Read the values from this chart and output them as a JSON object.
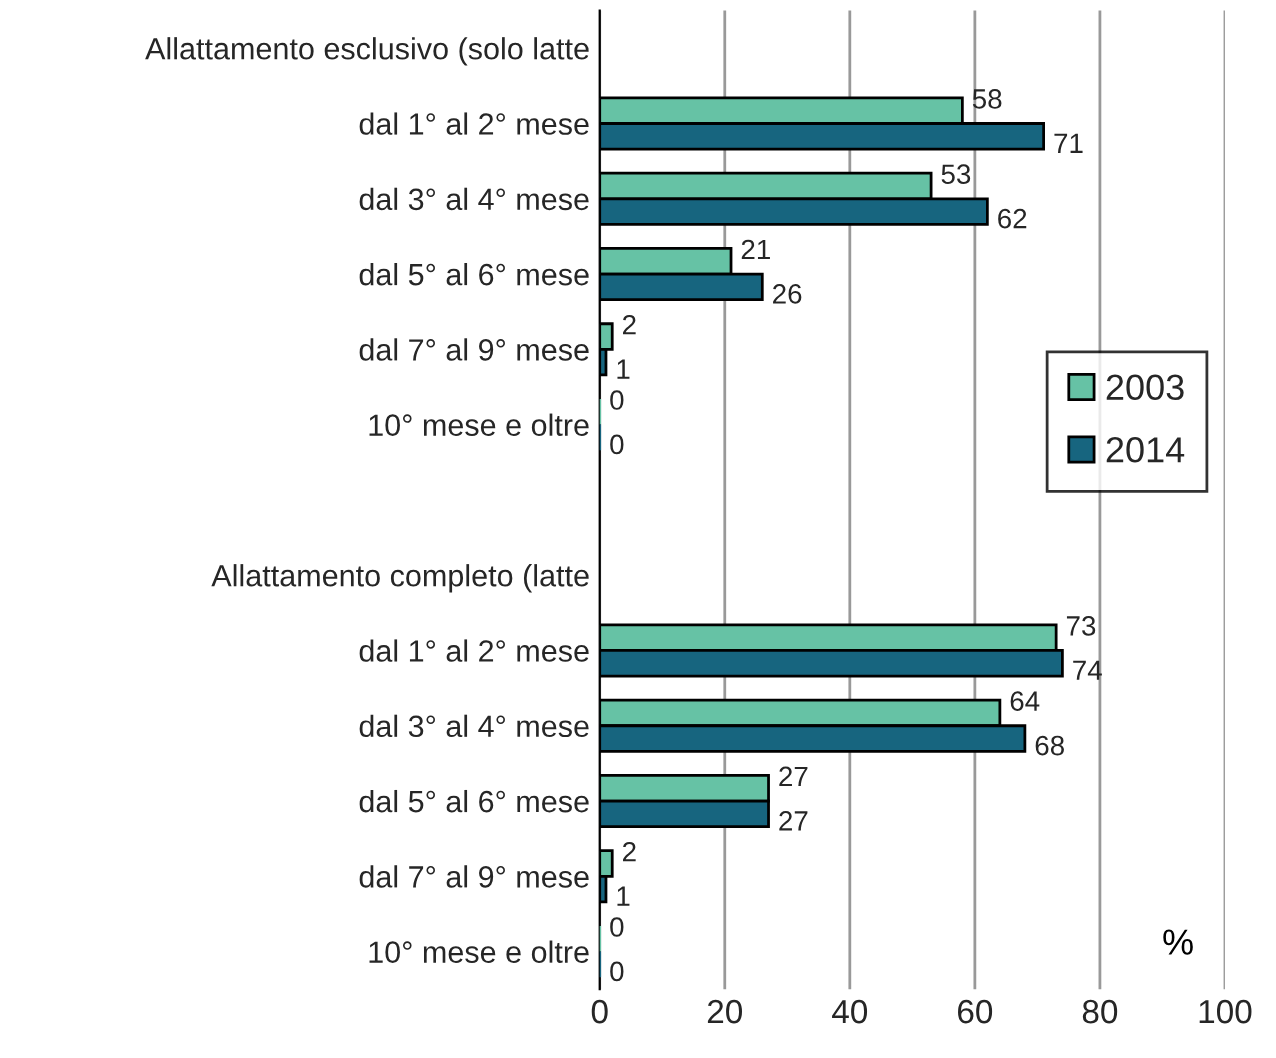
{
  "chart_data": {
    "type": "bar",
    "orientation": "horizontal",
    "categories": [
      "Allattamento esclusivo (solo latte",
      "dal 1° al 2° mese",
      "dal 3° al 4° mese",
      "dal 5° al 6° mese",
      "dal 7° al 9° mese",
      "10° mese e oltre",
      null,
      "Allattamento completo (latte",
      "dal 1° al 2° mese",
      "dal 3° al 4° mese",
      "dal 5° al 6° mese",
      "dal 7° al 9° mese",
      "10° mese e oltre"
    ],
    "series": [
      {
        "name": "2003",
        "color": "#66c2a5",
        "values": [
          null,
          58,
          53,
          21,
          2,
          0,
          null,
          null,
          73,
          64,
          27,
          2,
          0
        ]
      },
      {
        "name": "2014",
        "color": "#17657f",
        "values": [
          null,
          71,
          62,
          26,
          1,
          0,
          null,
          null,
          74,
          68,
          27,
          1,
          0
        ]
      }
    ],
    "xlim": [
      0,
      100
    ],
    "xticks": [
      0,
      20,
      40,
      60,
      80,
      100
    ],
    "grid": "x",
    "legend": "right",
    "data_labels": true,
    "annotations": [
      "%"
    ]
  }
}
